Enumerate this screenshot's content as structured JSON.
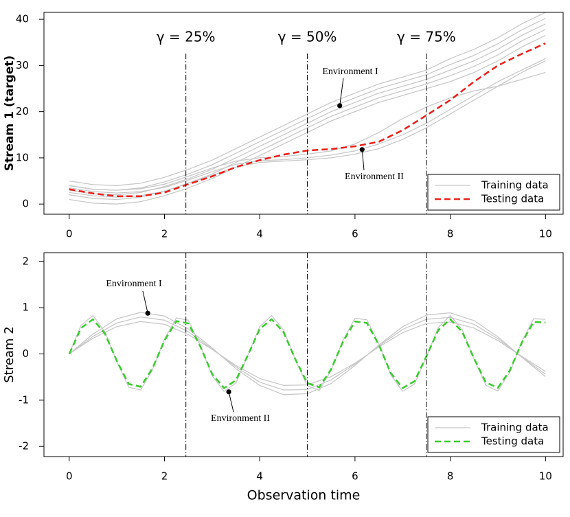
{
  "chart_data": [
    {
      "type": "line",
      "ylabel": "Stream 1 (target)",
      "x": [
        0,
        0.5,
        1,
        1.5,
        2,
        2.5,
        3,
        3.5,
        4,
        4.5,
        5,
        5.5,
        6,
        6.5,
        7,
        7.5,
        8,
        8.5,
        9,
        9.5,
        10
      ],
      "xlim": [
        -0.53,
        10.37
      ],
      "xticks": [
        0,
        2,
        4,
        6,
        8,
        10
      ],
      "ylim": [
        -2.2,
        41.5
      ],
      "yticks": [
        0,
        10,
        20,
        30,
        40
      ],
      "legend": "lower right",
      "series": [
        {
          "name": "Training data",
          "color": "#c8c8c8",
          "dashed": false,
          "values": [
            [
              1,
              0.2,
              0,
              0.5,
              1.8,
              3.5,
              5.5,
              8,
              10.5,
              13,
              15.5,
              18,
              20,
              22,
              23.5,
              25,
              26.5,
              28.5,
              31,
              34,
              36.5
            ],
            [
              2,
              1.2,
              1,
              1.5,
              2.8,
              4.5,
              6.5,
              9,
              11.5,
              14,
              16.5,
              19,
              21,
              23,
              24.5,
              26,
              27.8,
              29.8,
              32.3,
              35.3,
              37.8
            ],
            [
              3,
              2.2,
              2,
              2.5,
              3.8,
              5.5,
              7.5,
              10,
              12.5,
              15,
              17.5,
              20,
              22,
              24,
              25.5,
              27,
              29,
              31,
              33.5,
              36.5,
              39
            ],
            [
              4,
              3.2,
              3,
              3.5,
              4.8,
              6.5,
              8.5,
              11,
              13.5,
              16,
              18.5,
              21,
              23,
              25,
              26.5,
              28,
              30.2,
              32.2,
              34.7,
              37.7,
              40.2
            ],
            [
              5,
              4.2,
              4,
              4.5,
              5.8,
              7.5,
              9.5,
              12,
              14.5,
              17,
              19.5,
              22,
              24,
              26,
              27.5,
              29,
              31.5,
              33.5,
              36,
              39,
              41.5
            ],
            [
              2.5,
              1.8,
              1.5,
              1.8,
              2.8,
              4.5,
              6.2,
              8,
              9,
              9.3,
              9.6,
              10,
              10.8,
              12,
              14,
              16.5,
              19.5,
              22.5,
              25.5,
              28.5,
              31
            ],
            [
              3.5,
              2.7,
              2.4,
              2.7,
              3.6,
              5.2,
              7,
              8.6,
              9.4,
              9.6,
              10,
              10.6,
              11.5,
              13,
              15,
              17.5,
              20.5,
              23.5,
              26.5,
              29,
              31.5
            ],
            [
              4,
              3.2,
              3,
              3.3,
              4.3,
              6,
              7.8,
              9.3,
              10,
              10.3,
              10.8,
              11.5,
              13,
              15.5,
              18.5,
              21,
              23,
              24.5,
              25.5,
              27,
              28.5
            ]
          ]
        },
        {
          "name": "Testing data",
          "color": "#e8231e",
          "dashed": true,
          "values": [
            [
              3.2,
              2.3,
              1.7,
              1.7,
              2.5,
              4.3,
              6,
              8,
              9.5,
              10.7,
              11.6,
              11.9,
              12.5,
              13.5,
              16,
              19.2,
              22.5,
              26.5,
              30,
              32.5,
              34.8
            ]
          ]
        }
      ],
      "vlines": [
        {
          "x": 2.45,
          "label": "γ = 25%"
        },
        {
          "x": 5,
          "label": "γ = 50%"
        },
        {
          "x": 7.5,
          "label": "γ = 75%"
        }
      ],
      "annotations": [
        {
          "text": "Environment I",
          "x": 5.68,
          "y": 21.3
        },
        {
          "text": "Environment II",
          "x": 6.15,
          "y": 11.8
        }
      ]
    },
    {
      "type": "line",
      "ylabel": "Stream 2",
      "xlabel": "Observation time",
      "xlim": [
        -0.53,
        10.37
      ],
      "xticks": [
        0,
        2,
        4,
        6,
        8,
        10
      ],
      "ylim": [
        -2.22,
        2.19
      ],
      "yticks": [
        -2,
        -1,
        0,
        1,
        2
      ],
      "legend": "lower right",
      "series": [
        {
          "name": "Training data",
          "color": "#c8c8c8",
          "dashed": false,
          "x": [
            0,
            0.25,
            0.5,
            0.75,
            1,
            1.25,
            1.5,
            1.75,
            2,
            2.25,
            2.5,
            2.75,
            3,
            3.25,
            3.5,
            3.75,
            4,
            4.25,
            4.5,
            4.75,
            5,
            5.25,
            5.5,
            5.75,
            6,
            6.25,
            6.5,
            6.75,
            7,
            7.25,
            7.5,
            7.75,
            8,
            8.25,
            8.5,
            8.75,
            9,
            9.25,
            9.5,
            9.75,
            10
          ],
          "values": [
            [
              0,
              0.62,
              0.83,
              0.48,
              -0.17,
              -0.72,
              -0.78,
              -0.34,
              0.32,
              0.78,
              0.73,
              0.19,
              -0.47,
              -0.81,
              -0.63,
              -0.03,
              0.59,
              0.83,
              0.52,
              -0.13,
              -0.69,
              -0.79,
              -0.36,
              0.3,
              0.77,
              0.74,
              0.22,
              -0.45,
              -0.81,
              -0.65,
              -0.06,
              0.57,
              0.83,
              0.53,
              -0.11,
              -0.68,
              -0.8,
              -0.4,
              0.26,
              0.76,
              0.75
            ]
          ]
        },
        {
          "name": "Training data",
          "color": "#c8c8c8",
          "dashed": false,
          "x": [
            0,
            0.5,
            1,
            1.5,
            2,
            2.5,
            3,
            3.5,
            4,
            4.5,
            5,
            5.5,
            6,
            6.5,
            7,
            7.5,
            8,
            8.5,
            9,
            9.5,
            10
          ],
          "values": [
            [
              0,
              0.43,
              0.76,
              0.9,
              0.82,
              0.54,
              0.13,
              -0.32,
              -0.68,
              -0.88,
              -0.86,
              -0.64,
              -0.25,
              0.19,
              0.59,
              0.84,
              0.89,
              0.72,
              0.37,
              -0.07,
              -0.49
            ],
            [
              0,
              0.38,
              0.67,
              0.8,
              0.73,
              0.48,
              0.11,
              -0.28,
              -0.61,
              -0.78,
              -0.77,
              -0.56,
              -0.22,
              0.17,
              0.53,
              0.75,
              0.79,
              0.64,
              0.33,
              -0.06,
              -0.44
            ],
            [
              0,
              0.34,
              0.59,
              0.7,
              0.64,
              0.42,
              0.1,
              -0.25,
              -0.53,
              -0.68,
              -0.67,
              -0.49,
              -0.2,
              0.15,
              0.46,
              0.66,
              0.69,
              0.56,
              0.29,
              -0.05,
              -0.38
            ]
          ]
        },
        {
          "name": "Testing data",
          "color": "#3ccc2f",
          "dashed": true,
          "x": [
            0,
            0.25,
            0.5,
            0.75,
            1,
            1.25,
            1.5,
            1.75,
            2,
            2.25,
            2.5,
            2.75,
            3,
            3.25,
            3.5,
            3.75,
            4,
            4.25,
            4.5,
            4.75,
            5,
            5.25,
            5.5,
            5.75,
            6,
            6.25,
            6.5,
            6.75,
            7,
            7.25,
            7.5,
            7.75,
            8,
            8.25,
            8.5,
            8.75,
            9,
            9.25,
            9.5,
            9.75,
            10
          ],
          "values": [
            [
              0,
              0.56,
              0.75,
              0.44,
              -0.15,
              -0.65,
              -0.71,
              -0.31,
              0.29,
              0.71,
              0.66,
              0.17,
              -0.43,
              -0.74,
              -0.57,
              -0.03,
              0.54,
              0.75,
              0.47,
              -0.12,
              -0.63,
              -0.72,
              -0.33,
              0.27,
              0.7,
              0.67,
              0.2,
              -0.41,
              -0.74,
              -0.59,
              -0.05,
              0.52,
              0.75,
              0.48,
              -0.1,
              -0.62,
              -0.73,
              -0.36,
              0.24,
              0.69,
              0.68
            ]
          ]
        }
      ],
      "vlines": [
        {
          "x": 2.45
        },
        {
          "x": 5
        },
        {
          "x": 7.5
        }
      ],
      "annotations": [
        {
          "text": "Environment I",
          "x": 1.65,
          "y": 0.88
        },
        {
          "text": "Environment II",
          "x": 3.35,
          "y": -0.82
        }
      ]
    }
  ]
}
